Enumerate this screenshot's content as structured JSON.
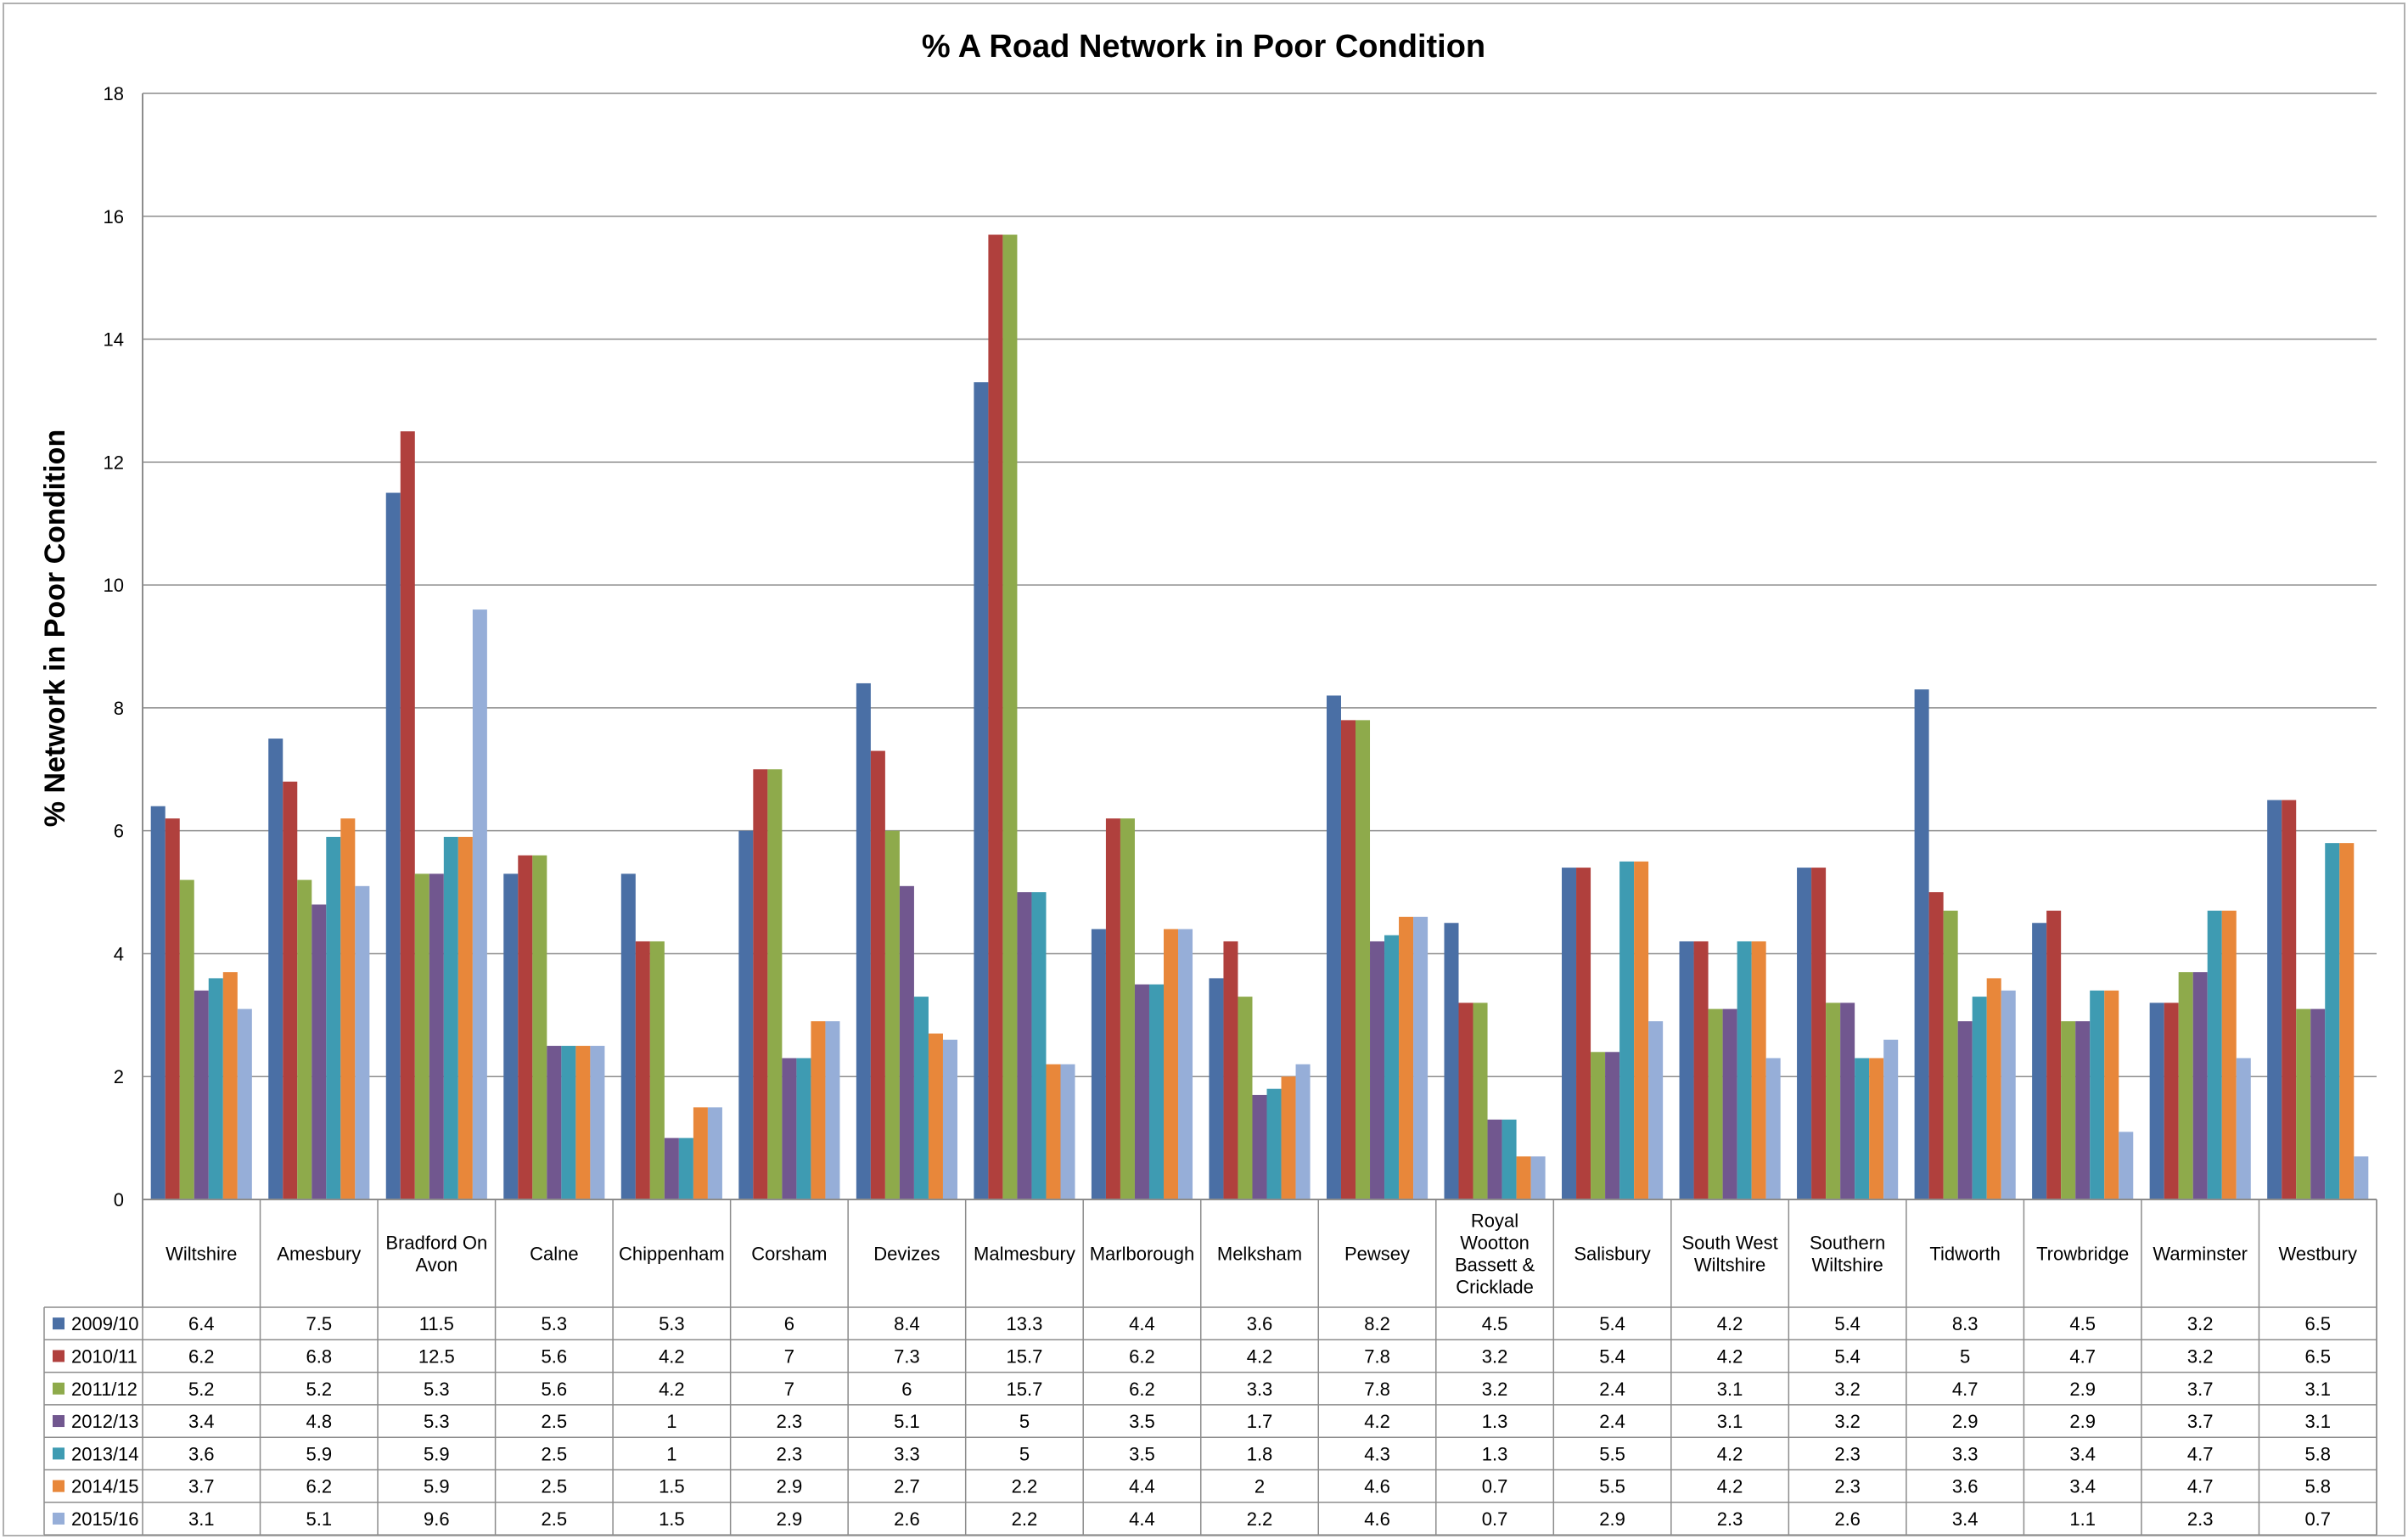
{
  "chart_data": {
    "type": "bar",
    "title": "% A Road Network in Poor Condition",
    "xlabel": "",
    "ylabel": "% Network in Poor Condition",
    "ylim": [
      0,
      18
    ],
    "yticks": [
      "0",
      "2",
      "4",
      "6",
      "8",
      "10",
      "12",
      "14",
      "16",
      "18"
    ],
    "grid": true,
    "legend": "data-table-left",
    "categories": [
      [
        "Wiltshire"
      ],
      [
        "Amesbury"
      ],
      [
        "Bradford On",
        "Avon"
      ],
      [
        "Calne"
      ],
      [
        "Chippenham"
      ],
      [
        "Corsham"
      ],
      [
        "Devizes"
      ],
      [
        "Malmesbury"
      ],
      [
        "Marlborough"
      ],
      [
        "Melksham"
      ],
      [
        "Pewsey"
      ],
      [
        "Royal",
        "Wootton",
        "Bassett &",
        "Cricklade"
      ],
      [
        "Salisbury"
      ],
      [
        "South West",
        "Wiltshire"
      ],
      [
        "Southern",
        "Wiltshire"
      ],
      [
        "Tidworth"
      ],
      [
        "Trowbridge"
      ],
      [
        "Warminster"
      ],
      [
        "Westbury"
      ]
    ],
    "series": [
      {
        "name": "2009/10",
        "color": "#4A6FA5",
        "values": [
          6.4,
          7.5,
          11.5,
          5.3,
          5.3,
          6,
          8.4,
          13.3,
          4.4,
          3.6,
          8.2,
          4.5,
          5.4,
          4.2,
          5.4,
          8.3,
          4.5,
          3.2,
          6.5
        ]
      },
      {
        "name": "2010/11",
        "color": "#B0403D",
        "values": [
          6.2,
          6.8,
          12.5,
          5.6,
          4.2,
          7,
          7.3,
          15.7,
          6.2,
          4.2,
          7.8,
          3.2,
          5.4,
          4.2,
          5.4,
          5,
          4.7,
          3.2,
          6.5
        ]
      },
      {
        "name": "2011/12",
        "color": "#8EAA4B",
        "values": [
          5.2,
          5.2,
          5.3,
          5.6,
          4.2,
          7,
          6,
          15.7,
          6.2,
          3.3,
          7.8,
          3.2,
          2.4,
          3.1,
          3.2,
          4.7,
          2.9,
          3.7,
          3.1
        ]
      },
      {
        "name": "2012/13",
        "color": "#71578F",
        "values": [
          3.4,
          4.8,
          5.3,
          2.5,
          1,
          2.3,
          5.1,
          5,
          3.5,
          1.7,
          4.2,
          1.3,
          2.4,
          3.1,
          3.2,
          2.9,
          2.9,
          3.7,
          3.1
        ]
      },
      {
        "name": "2013/14",
        "color": "#3E9BB2",
        "values": [
          3.6,
          5.9,
          5.9,
          2.5,
          1,
          2.3,
          3.3,
          5,
          3.5,
          1.8,
          4.3,
          1.3,
          5.5,
          4.2,
          2.3,
          3.3,
          3.4,
          4.7,
          5.8
        ]
      },
      {
        "name": "2014/15",
        "color": "#E8873A",
        "values": [
          3.7,
          6.2,
          5.9,
          2.5,
          1.5,
          2.9,
          2.7,
          2.2,
          4.4,
          2,
          4.6,
          0.7,
          5.5,
          4.2,
          2.3,
          3.6,
          3.4,
          4.7,
          5.8
        ]
      },
      {
        "name": "2015/16",
        "color": "#96AED8",
        "values": [
          3.1,
          5.1,
          9.6,
          2.5,
          1.5,
          2.9,
          2.6,
          2.2,
          4.4,
          2.2,
          4.6,
          0.7,
          2.9,
          2.3,
          2.6,
          3.4,
          1.1,
          2.3,
          0.7
        ]
      }
    ]
  }
}
